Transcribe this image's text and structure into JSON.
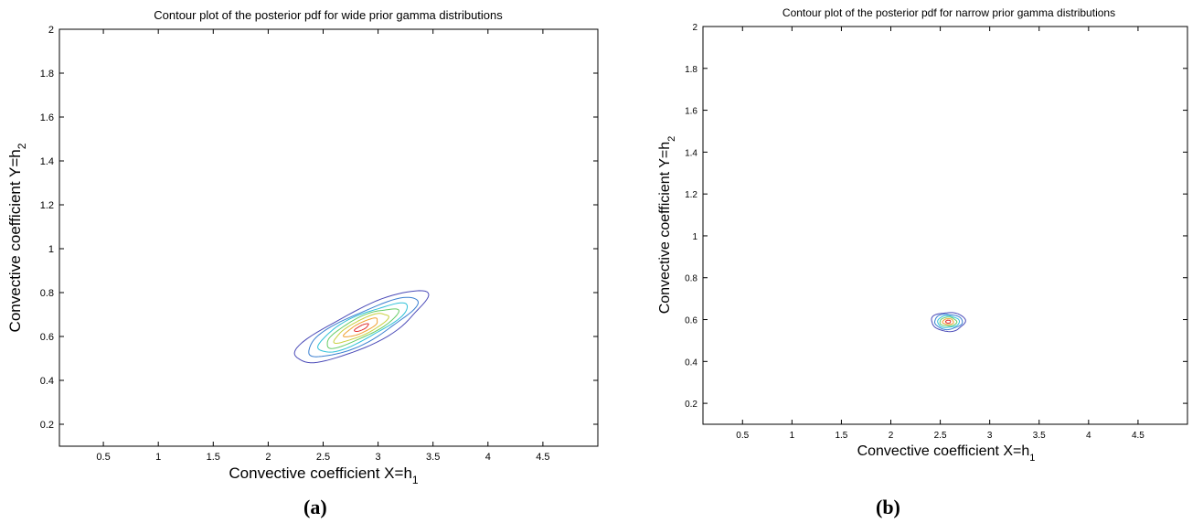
{
  "chart_data": [
    {
      "type": "contour",
      "title": "Contour plot of the posterior pdf for wide prior gamma distributions",
      "xlabel": "Convective coefficient X=h",
      "xlabel_sub": "1",
      "ylabel": "Convective coefficient Y=h",
      "ylabel_sub": "2",
      "xlim": [
        0.1,
        5.0
      ],
      "ylim": [
        0.1,
        2.0
      ],
      "xticks": [
        "0.5",
        "1",
        "1.5",
        "2",
        "2.5",
        "3",
        "3.5",
        "4",
        "4.5"
      ],
      "yticks": [
        "0.2",
        "0.4",
        "0.6",
        "0.8",
        "1",
        "1.2",
        "1.4",
        "1.6",
        "1.8",
        "2"
      ],
      "contours": {
        "center": [
          2.85,
          0.64
        ],
        "angle_deg": 26,
        "levels": [
          {
            "color": "#4b4bb8",
            "rx": 0.66,
            "ry": 0.085
          },
          {
            "color": "#3a7fd0",
            "rx": 0.55,
            "ry": 0.068
          },
          {
            "color": "#2fc0d8",
            "rx": 0.45,
            "ry": 0.056
          },
          {
            "color": "#66cc66",
            "rx": 0.36,
            "ry": 0.045
          },
          {
            "color": "#c8d040",
            "rx": 0.27,
            "ry": 0.034
          },
          {
            "color": "#f0a030",
            "rx": 0.17,
            "ry": 0.022
          },
          {
            "color": "#e03030",
            "rx": 0.07,
            "ry": 0.01
          }
        ]
      },
      "caption": "(a)"
    },
    {
      "type": "contour",
      "title": "Contour plot of the posterior pdf for narrow prior gamma distributions",
      "xlabel": "Convective coefficient X=h",
      "xlabel_sub": "1",
      "ylabel": "Convective coefficient Y=h",
      "ylabel_sub": "2",
      "xlim": [
        0.1,
        5.0
      ],
      "ylim": [
        0.1,
        2.0
      ],
      "xticks": [
        "0.5",
        "1",
        "1.5",
        "2",
        "2.5",
        "3",
        "3.5",
        "4",
        "4.5"
      ],
      "yticks": [
        "0.2",
        "0.4",
        "0.6",
        "0.8",
        "1",
        "1.2",
        "1.4",
        "1.6",
        "1.8",
        "2"
      ],
      "contours": {
        "center": [
          2.58,
          0.59
        ],
        "angle_deg": 0,
        "levels": [
          {
            "color": "#4b4bb8",
            "rx": 0.17,
            "ry": 0.045
          },
          {
            "color": "#3a7fd0",
            "rx": 0.14,
            "ry": 0.036
          },
          {
            "color": "#2fc0d8",
            "rx": 0.11,
            "ry": 0.028
          },
          {
            "color": "#66cc66",
            "rx": 0.085,
            "ry": 0.021
          },
          {
            "color": "#f0a030",
            "rx": 0.055,
            "ry": 0.014
          },
          {
            "color": "#e03030",
            "rx": 0.025,
            "ry": 0.007
          }
        ]
      },
      "caption": "(b)"
    }
  ]
}
